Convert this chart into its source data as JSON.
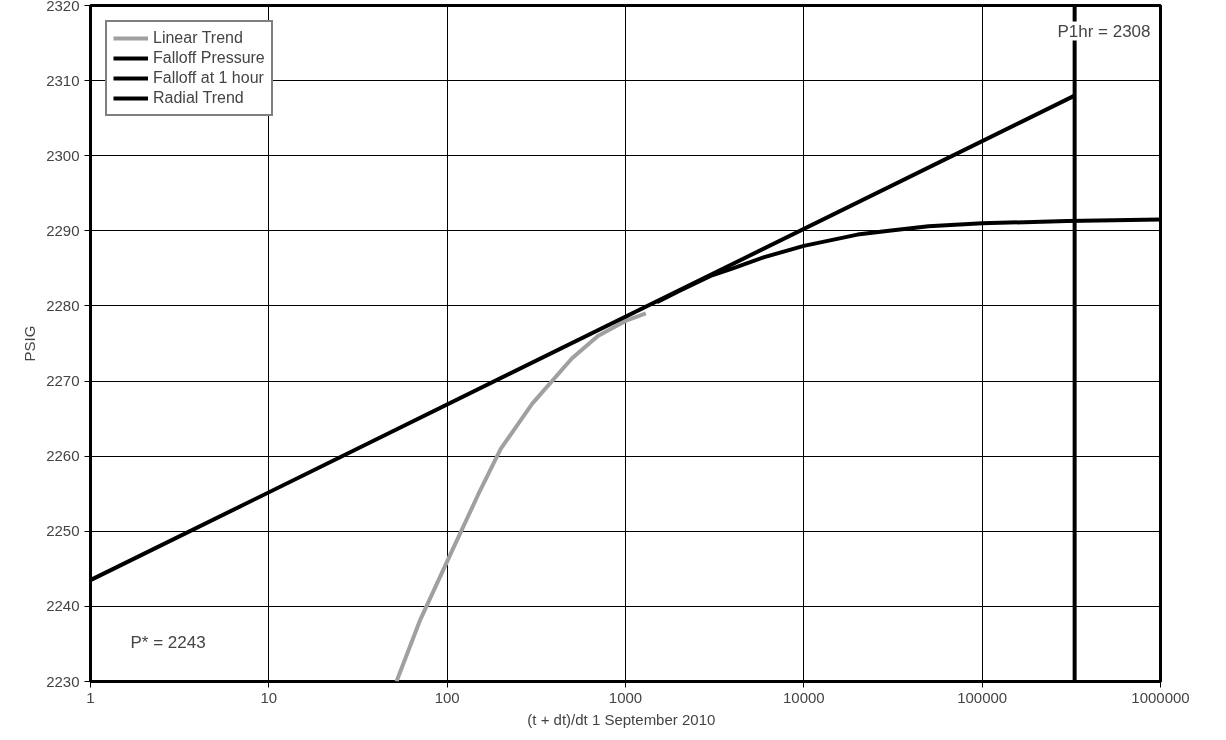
{
  "chart_data": {
    "type": "line",
    "xlabel": "(t + dt)/dt   1 September 2010",
    "ylabel": "PSIG",
    "log": "x",
    "xlim": [
      1,
      1000000
    ],
    "ylim": [
      2230,
      2320
    ],
    "xticks": [
      1,
      10,
      100,
      1000,
      10000,
      100000,
      1000000
    ],
    "yticks": [
      2230,
      2240,
      2250,
      2260,
      2270,
      2280,
      2290,
      2300,
      2310,
      2320
    ],
    "grid": true,
    "legend": "top left",
    "line_style": "solid",
    "marker": "none",
    "series": [
      {
        "name": "Linear Trend",
        "color": "#a0a0a0",
        "x": [
          52,
          70,
          100,
          150,
          200,
          300,
          500,
          700,
          1000,
          1300
        ],
        "values": [
          2230,
          2238,
          2246,
          2255,
          2261,
          2267,
          2273,
          2276,
          2278,
          2279
        ]
      },
      {
        "name": "Falloff Pressure",
        "color": "#000000",
        "x": [
          1500,
          2000,
          3000,
          4000,
          6000,
          10000,
          20000,
          30000,
          50000,
          100000,
          300000,
          1000000
        ],
        "values": [
          2280.5,
          2282,
          2284,
          2285,
          2286.5,
          2288,
          2289.5,
          2290,
          2290.6,
          2291,
          2291.3,
          2291.5
        ]
      },
      {
        "name": "Falloff at 1 hour",
        "color": "#000000",
        "x": [
          330000,
          330000
        ],
        "values": [
          2230,
          2320
        ]
      },
      {
        "name": "Radial Trend",
        "color": "#000000",
        "x": [
          1,
          330000
        ],
        "values": [
          2243.5,
          2308
        ]
      }
    ],
    "annotations": [
      "P1hr = 2308",
      "P* = 2243"
    ]
  }
}
